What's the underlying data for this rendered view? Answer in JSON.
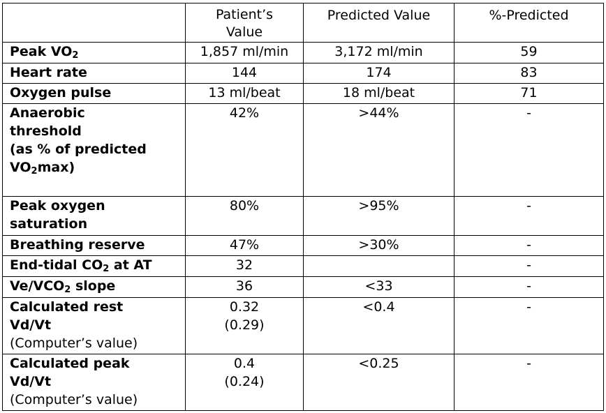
{
  "headers": [
    "",
    "Patient’s Value",
    "Predicted Value",
    "%-Predicted"
  ],
  "rows": [
    {
      "label": "Peak VO",
      "label_sub": "2",
      "patient": "1,857 ml/min",
      "predicted": "3,172 ml/min",
      "pct": "59"
    },
    {
      "label": "Heart rate",
      "patient": "144",
      "predicted": "174",
      "pct": "83"
    },
    {
      "label": "Oxygen pulse",
      "patient": "13 ml/beat",
      "predicted": "18 ml/beat",
      "pct": "71"
    },
    {
      "label_lines": [
        "Anaerobic",
        "threshold",
        "(as % of predicted",
        "VO"
      ],
      "label_tail_sub": "2",
      "label_tail": "max)",
      "patient": "42%",
      "predicted": ">44%",
      "pct": "-"
    },
    {
      "label_lines": [
        "Peak oxygen",
        "saturation"
      ],
      "patient": "80%",
      "predicted": ">95%",
      "pct": "-"
    },
    {
      "label": "Breathing reserve",
      "patient": "47%",
      "predicted": ">30%",
      "pct": "-"
    },
    {
      "label": "End-tidal CO",
      "label_sub": "2",
      "label_after": " at AT",
      "patient": "32",
      "predicted": "",
      "pct": "-"
    },
    {
      "label": "Ve/VCO",
      "label_sub": "2",
      "label_after": " slope",
      "patient": "36",
      "predicted": "<33",
      "pct": "-"
    },
    {
      "label_lines": [
        "Calculated rest",
        "Vd/Vt"
      ],
      "label_note": "(Computer’s value)",
      "patient": "0.32",
      "patient_note": "(0.29)",
      "predicted": "<0.4",
      "pct": "-"
    },
    {
      "label_lines": [
        "Calculated peak",
        "Vd/Vt"
      ],
      "label_note": "(Computer’s value)",
      "patient": "0.4",
      "patient_note": "(0.24)",
      "predicted": "<0.25",
      "pct": "-"
    }
  ]
}
